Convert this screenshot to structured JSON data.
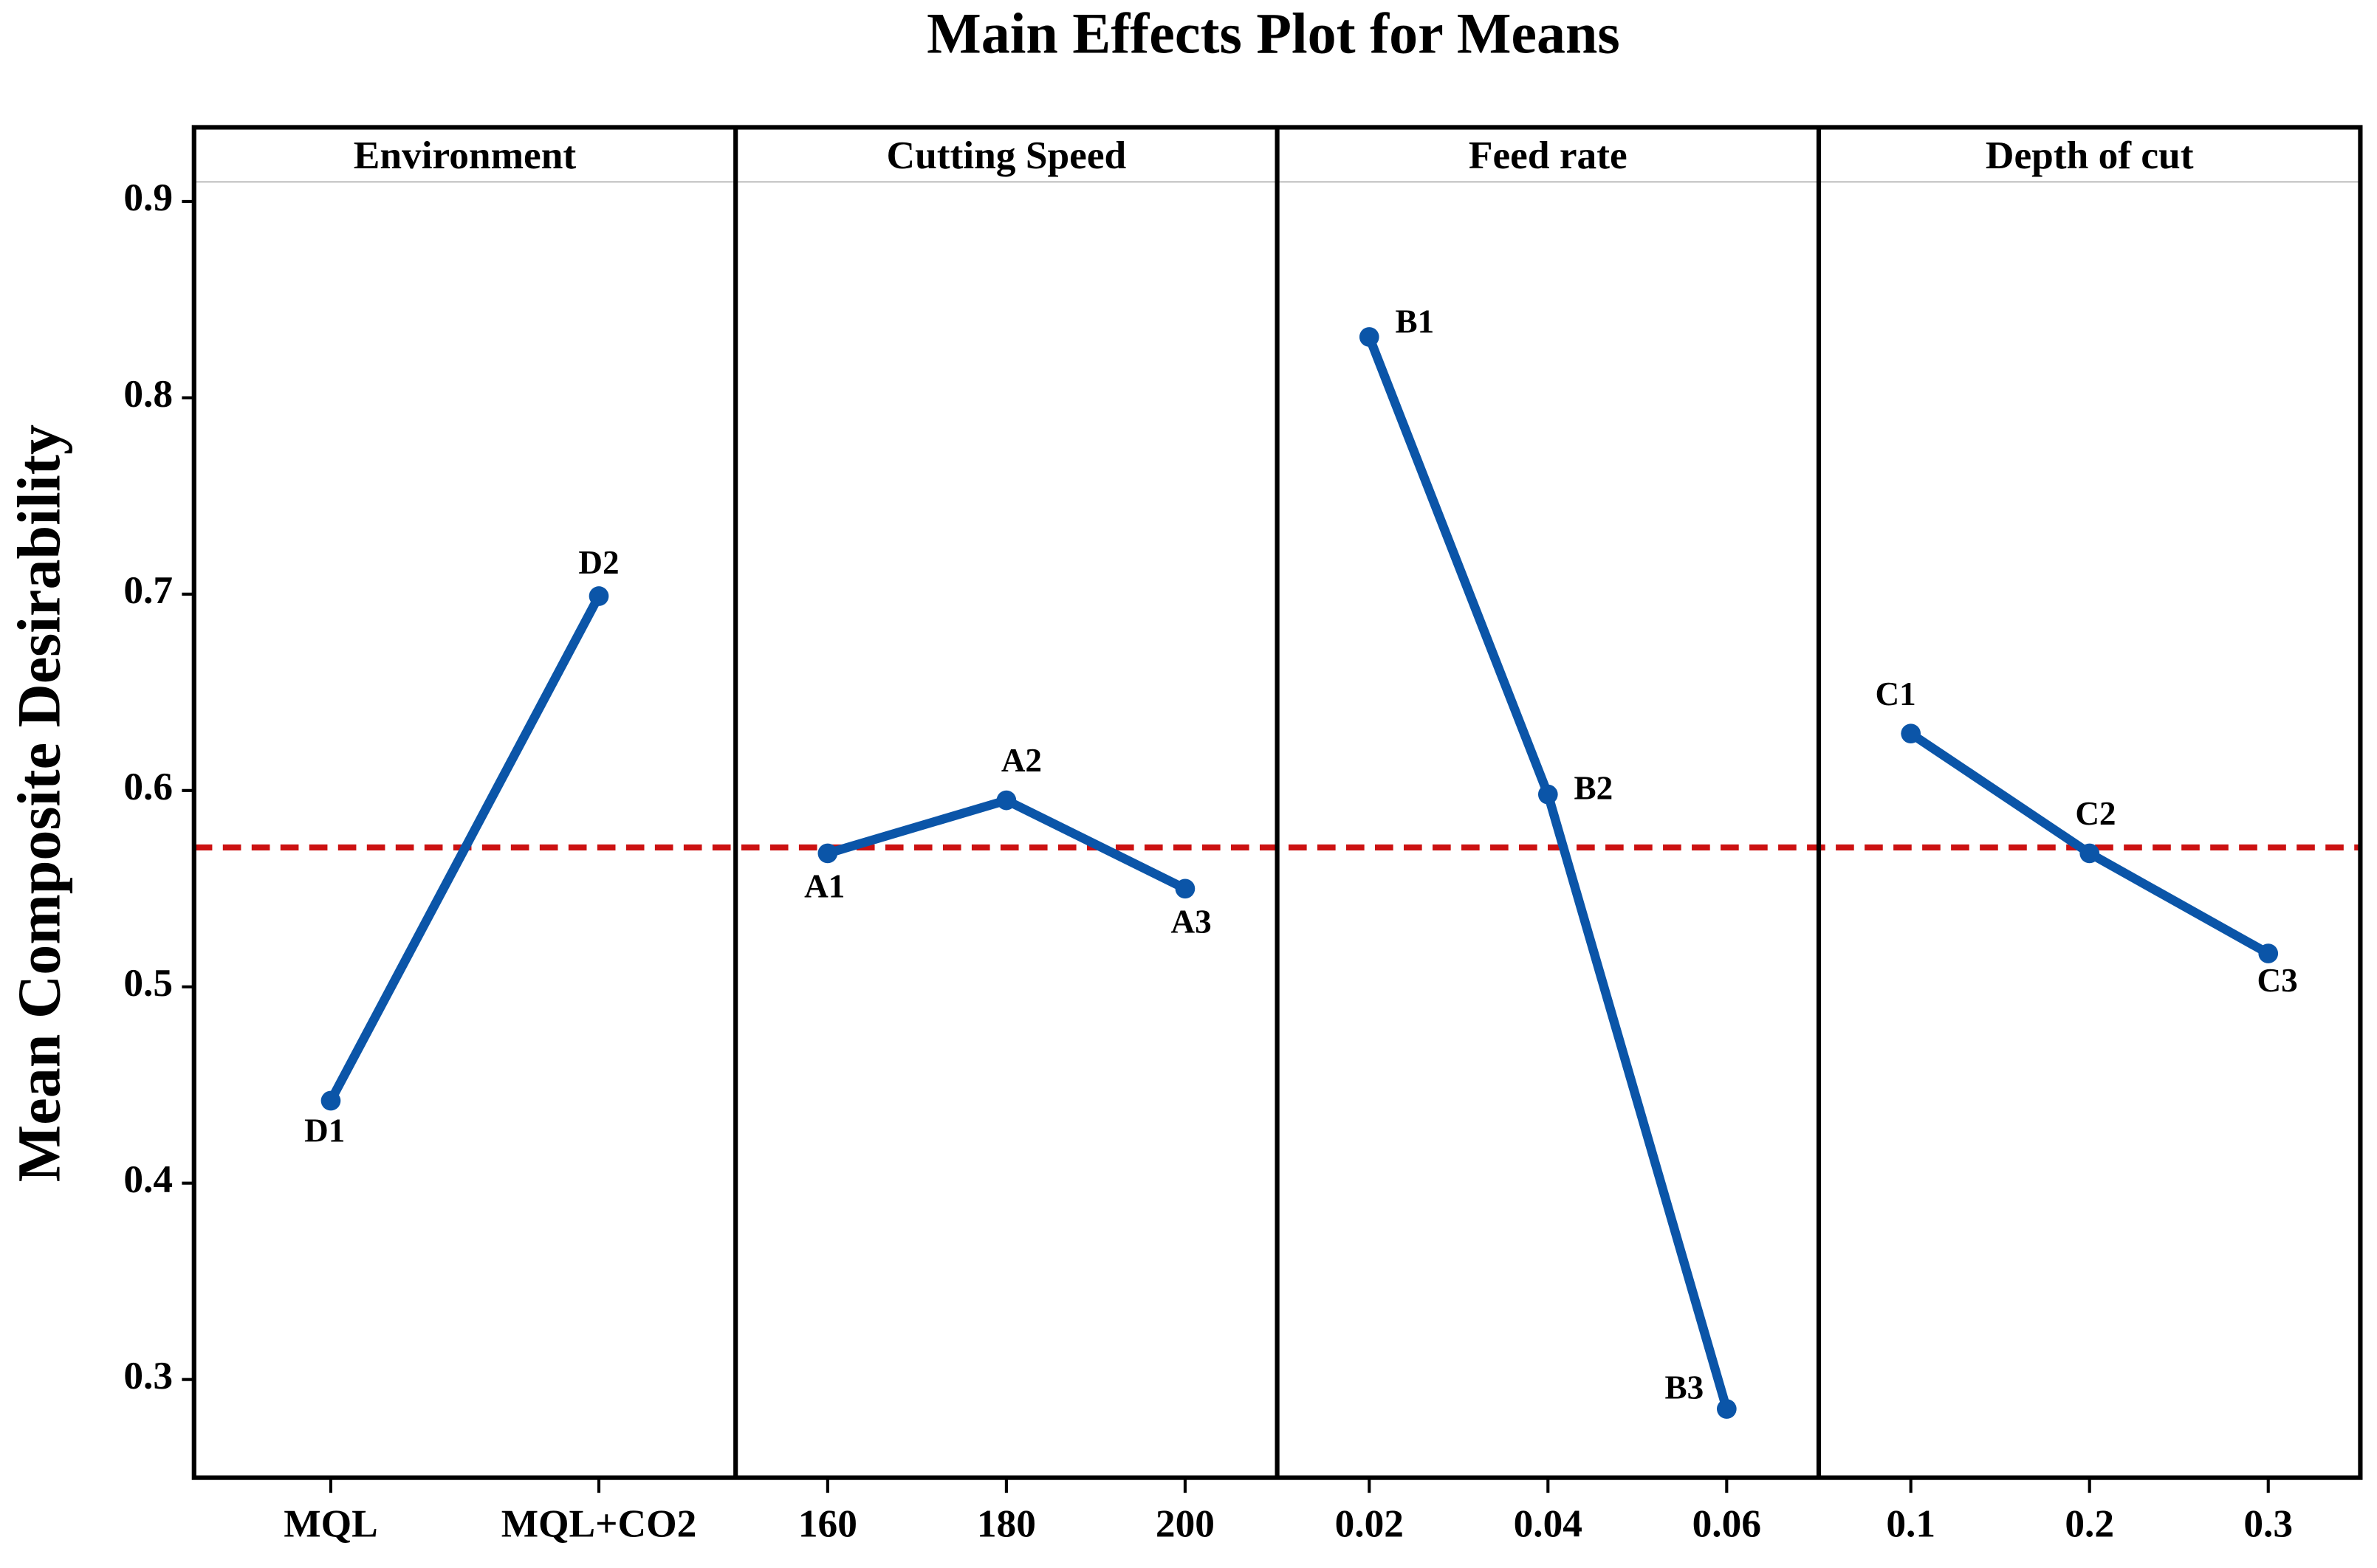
{
  "chart_data": {
    "type": "line",
    "title": "Main Effects Plot for Means",
    "ylabel": "Mean Composite Desirability",
    "ylim": [
      0.25,
      0.91
    ],
    "yticks": [
      0.3,
      0.4,
      0.5,
      0.6,
      0.7,
      0.8,
      0.9
    ],
    "color": "#0b55a8",
    "reference_line": {
      "value": 0.571,
      "color": "#cc1111"
    },
    "panels": [
      {
        "title": "Environment",
        "categories": [
          "MQL",
          "MQL+CO2"
        ],
        "values": [
          0.442,
          0.699
        ],
        "point_labels": [
          "D1",
          "D2"
        ]
      },
      {
        "title": "Cutting Speed",
        "categories": [
          "160",
          "180",
          "200"
        ],
        "values": [
          0.568,
          0.595,
          0.55
        ],
        "point_labels": [
          "A1",
          "A2",
          "A3"
        ]
      },
      {
        "title": "Feed rate",
        "categories": [
          "0.02",
          "0.04",
          "0.06"
        ],
        "values": [
          0.831,
          0.598,
          0.285
        ],
        "point_labels": [
          "B1",
          "B2",
          "B3"
        ]
      },
      {
        "title": "Depth of cut",
        "categories": [
          "0.1",
          "0.2",
          "0.3"
        ],
        "values": [
          0.629,
          0.568,
          0.517
        ],
        "point_labels": [
          "C1",
          "C2",
          "C3"
        ]
      }
    ]
  }
}
